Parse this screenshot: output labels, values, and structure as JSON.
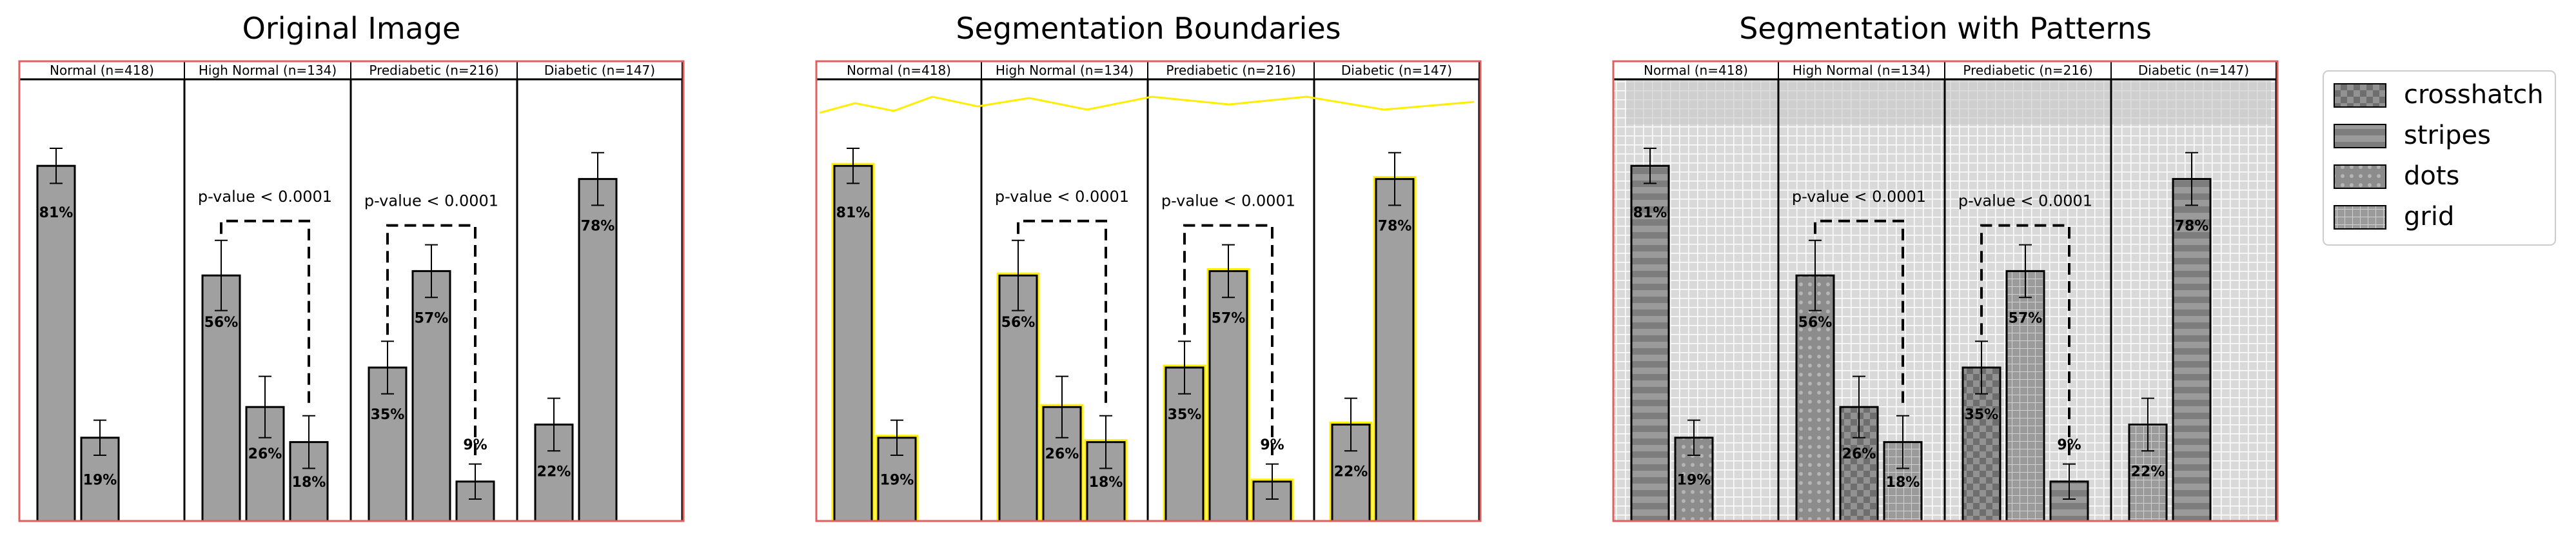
{
  "panels": [
    {
      "title": "Original Image",
      "variant": "original"
    },
    {
      "title": "Segmentation Boundaries",
      "variant": "boundaries"
    },
    {
      "title": "Segmentation with Patterns",
      "variant": "patterns"
    }
  ],
  "chart_data": {
    "type": "bar",
    "ylim": [
      0,
      100
    ],
    "groups": [
      {
        "label": "Normal (n=418)",
        "bars": [
          {
            "value": 81,
            "label": "81%",
            "err": 4
          },
          {
            "value": 19,
            "label": "19%",
            "err": 4
          }
        ]
      },
      {
        "label": "High Normal (n=134)",
        "bars": [
          {
            "value": 56,
            "label": "56%",
            "err": 8
          },
          {
            "value": 26,
            "label": "26%",
            "err": 7
          },
          {
            "value": 18,
            "label": "18%",
            "err": 6
          }
        ],
        "bracket": {
          "from": 0,
          "to": 2,
          "text": "p-value < 0.0001"
        }
      },
      {
        "label": "Prediabetic (n=216)",
        "bars": [
          {
            "value": 35,
            "label": "35%",
            "err": 6
          },
          {
            "value": 57,
            "label": "57%",
            "err": 6
          },
          {
            "value": 9,
            "label": "9%",
            "err": 4
          }
        ],
        "bracket": {
          "from": 0,
          "to": 2,
          "text": "p-value < 0.0001"
        }
      },
      {
        "label": "Diabetic (n=147)",
        "bars": [
          {
            "value": 22,
            "label": "22%",
            "err": 6
          },
          {
            "value": 78,
            "label": "78%",
            "err": 6
          }
        ]
      }
    ]
  },
  "legend": {
    "items": [
      {
        "label": "crosshatch",
        "icon": "crosshatch-icon"
      },
      {
        "label": "stripes",
        "icon": "stripes-icon"
      },
      {
        "label": "dots",
        "icon": "dots-icon"
      },
      {
        "label": "grid",
        "icon": "grid-icon"
      }
    ]
  },
  "colors": {
    "bar": "#a0a0a0",
    "frame": "#e06060",
    "boundary": "#ffee00",
    "pattern_bg": "#d8d8d8"
  }
}
